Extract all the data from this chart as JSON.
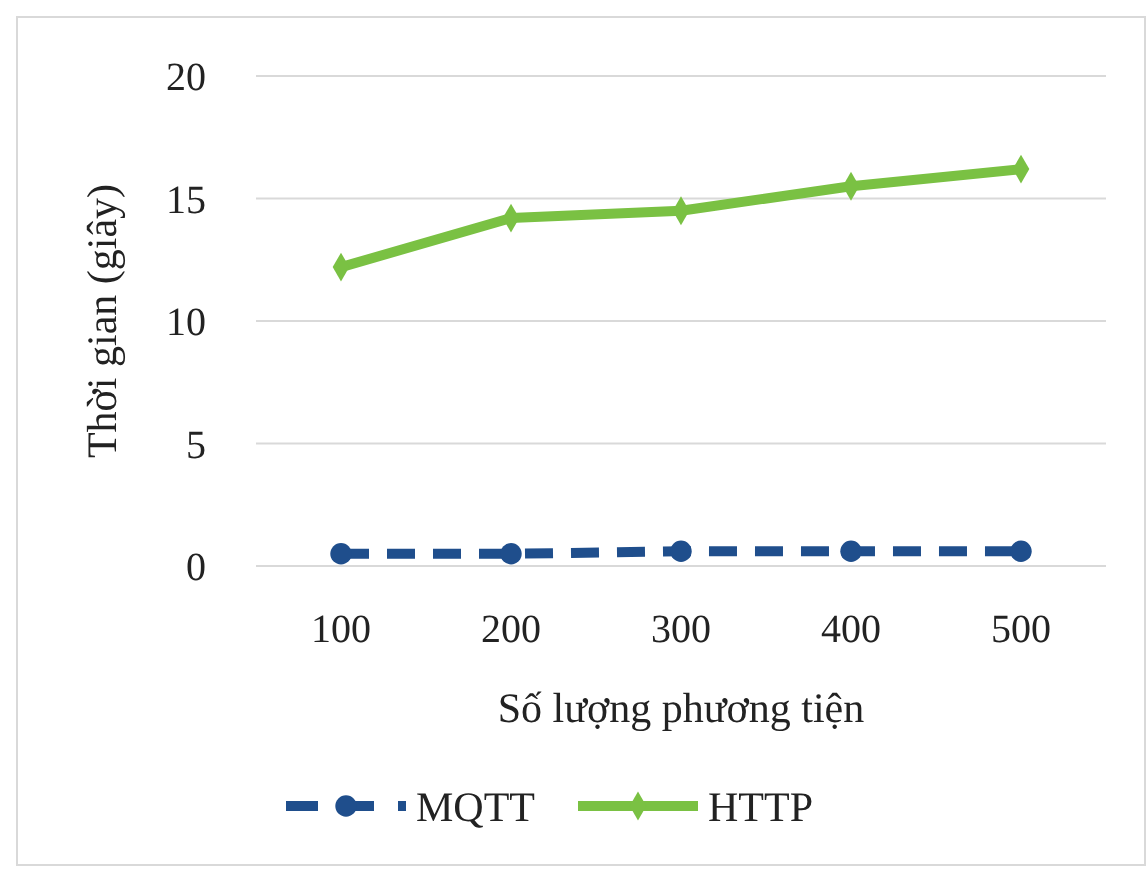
{
  "chart_data": {
    "type": "line",
    "xlabel": "Số lượng phương tiện",
    "ylabel": "Thời gian (giây)",
    "categories": [
      "100",
      "200",
      "300",
      "400",
      "500"
    ],
    "series": [
      {
        "name": "MQTT",
        "color": "#1f4e8c",
        "values": [
          0.5,
          0.5,
          0.6,
          0.6,
          0.6
        ],
        "marker": "circle",
        "line_style": "dashed"
      },
      {
        "name": "HTTP",
        "color": "#7ac143",
        "values": [
          12.2,
          14.2,
          14.5,
          15.5,
          16.2
        ],
        "marker": "diamond",
        "line_style": "solid"
      }
    ],
    "ylim": [
      0,
      20
    ],
    "yticks": [
      0,
      5,
      10,
      15,
      20
    ],
    "grid": "y",
    "legend": "bottom"
  }
}
